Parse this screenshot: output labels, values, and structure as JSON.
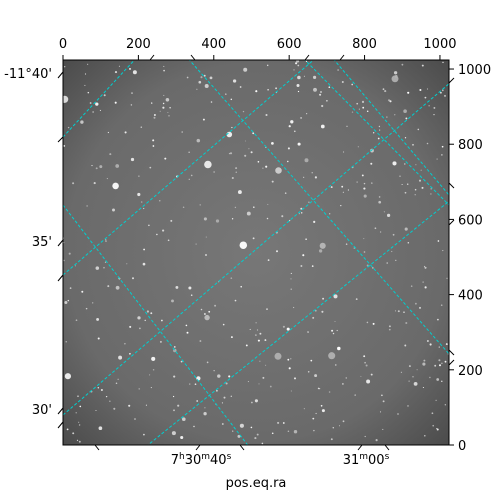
{
  "chart_data": {
    "type": "image",
    "xlabel": "pos.eq.ra",
    "ylabel": "",
    "pixel_axes": {
      "x_ticks": [
        0,
        200,
        400,
        600,
        800,
        1000
      ],
      "x_tick_labels": [
        "0",
        "200",
        "400",
        "600",
        "800",
        "1000"
      ],
      "y_ticks": [
        0,
        200,
        400,
        600,
        800,
        1000
      ],
      "y_tick_labels": [
        "0",
        "200",
        "400",
        "600",
        "800",
        "1000"
      ],
      "xlim": [
        0,
        1024
      ],
      "ylim": [
        0,
        1024
      ]
    },
    "wcs_axes": {
      "ra_ticks": [
        {
          "h_or_m": "7",
          "h_unit": "h",
          "m": "30",
          "m_unit": "m",
          "s": "40",
          "s_unit": "s"
        },
        {
          "h_or_m": "",
          "h_unit": "",
          "m": "31",
          "m_unit": "m",
          "s": "00",
          "s_unit": "s"
        }
      ],
      "dec_ticks": [
        "-11°40'",
        "35'",
        "30'"
      ]
    },
    "grid": true,
    "grid_color": "#00d0d0",
    "image_background": "#6b6b6b"
  }
}
